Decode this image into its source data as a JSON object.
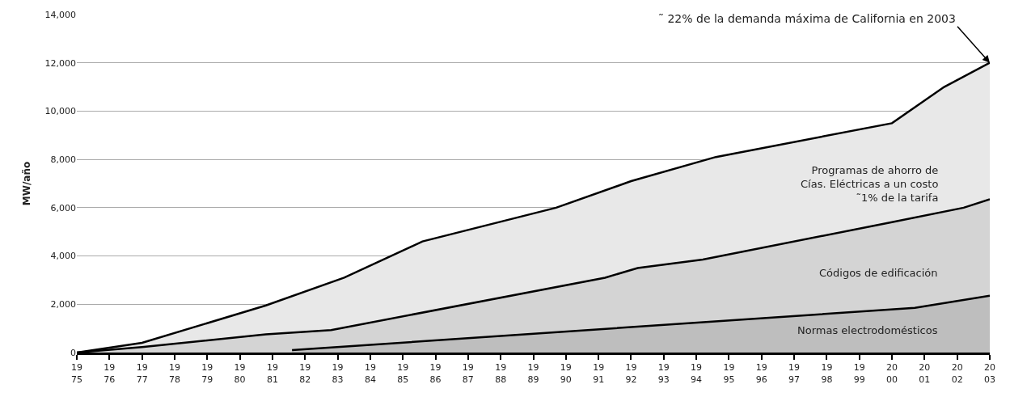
{
  "chart_data": {
    "type": "area",
    "ylabel": "MW/año",
    "xlim": [
      1975,
      2003
    ],
    "ylim": [
      0,
      14000
    ],
    "xticks": [
      1975,
      1976,
      1977,
      1978,
      1979,
      1980,
      1981,
      1982,
      1983,
      1984,
      1985,
      1986,
      1987,
      1988,
      1989,
      1990,
      1991,
      1992,
      1993,
      1994,
      1995,
      1996,
      1997,
      1998,
      1999,
      2000,
      2001,
      2002,
      2003
    ],
    "yticks": [
      {
        "value": 0,
        "label": "0"
      },
      {
        "value": 2000,
        "label": "2,000"
      },
      {
        "value": 4000,
        "label": "4,000"
      },
      {
        "value": 6000,
        "label": "6,000"
      },
      {
        "value": 8000,
        "label": "8,000"
      },
      {
        "value": 10000,
        "label": "10,000"
      },
      {
        "value": 12000,
        "label": "12,000"
      },
      {
        "value": 14000,
        "label": "14,000"
      }
    ],
    "grid": "y",
    "series": [
      {
        "color": "#e8e8e8",
        "x": [
          1975,
          1977,
          1980.8,
          1983.2,
          1985.6,
          1989.7,
          1992,
          1994.6,
          2000,
          2001.6,
          2003
        ],
        "values": [
          0,
          400,
          1950,
          3100,
          4600,
          6000,
          7100,
          8100,
          9500,
          11000,
          12000
        ]
      },
      {
        "color": "#d4d4d4",
        "x": [
          1975,
          1977,
          1980.8,
          1982.8,
          1991.2,
          1992.2,
          1994.2,
          2000,
          2002.2,
          2003
        ],
        "values": [
          0,
          230,
          750,
          930,
          3100,
          3500,
          3850,
          5400,
          6000,
          6350
        ]
      },
      {
        "color": "#bebebe",
        "x": [
          1981.6,
          2000.7,
          2003
        ],
        "values": [
          100,
          1850,
          2350
        ]
      }
    ],
    "annotations": [
      {
        "text": "˜ 22% de la demanda máxima de California en 2003",
        "x": 2003,
        "y": 12000
      },
      "Programas de ahorro de\nCías. Eléctricas a un costo\n˜1% de la tarifa",
      "Códigos de edificación",
      "Normas electrodomésticos"
    ]
  }
}
